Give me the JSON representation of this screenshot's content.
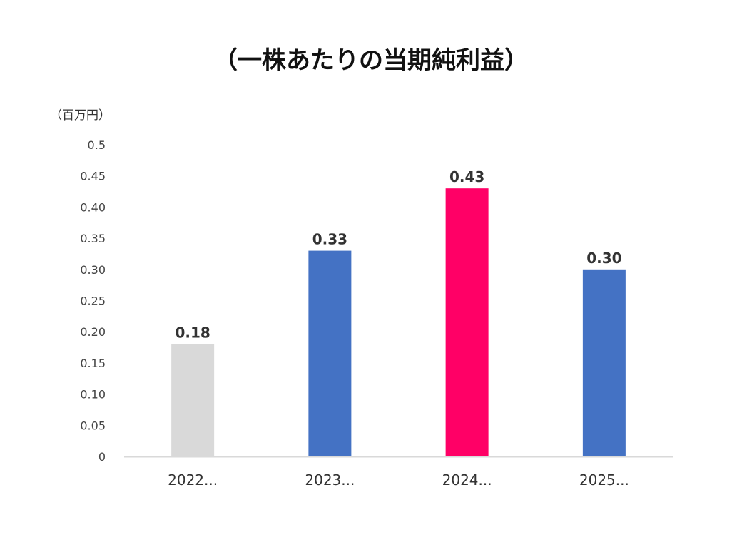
{
  "chart_data": {
    "type": "bar",
    "title": "（一株あたりの当期純利益）",
    "ylabel": "（百万円）",
    "xlabel": "",
    "categories": [
      "2022...",
      "2023...",
      "2024...",
      "2025..."
    ],
    "values": [
      0.18,
      0.33,
      0.43,
      0.3
    ],
    "data_labels": [
      "0.18",
      "0.33",
      "0.43",
      "0.30"
    ],
    "bar_colors": [
      "#d9d9d9",
      "#4472c4",
      "#ff0066",
      "#4472c4"
    ],
    "ylim": [
      0,
      0.5
    ],
    "yticks": [
      "0",
      "0.05",
      "0.10",
      "0.15",
      "0.20",
      "0.25",
      "0.30",
      "0.35",
      "0.40",
      "0.45",
      "0.5"
    ],
    "ytick_values": [
      0,
      0.05,
      0.1,
      0.15,
      0.2,
      0.25,
      0.3,
      0.35,
      0.4,
      0.45,
      0.5
    ],
    "grid": false,
    "legend": "none"
  }
}
